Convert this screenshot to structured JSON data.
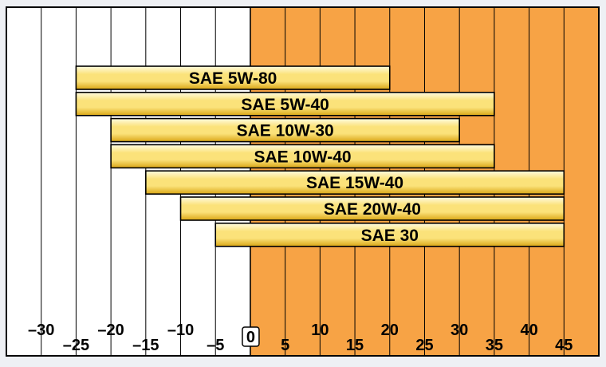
{
  "chart_data": {
    "type": "bar",
    "orientation": "horizontal-range",
    "xlim": [
      -35,
      50
    ],
    "background_regions": [
      {
        "from": -35,
        "to": 0,
        "color": "#ffffff"
      },
      {
        "from": 0,
        "to": 50,
        "color": "#f7a345"
      }
    ],
    "grid": true,
    "grid_values": [
      -30,
      -25,
      -20,
      -15,
      -10,
      -5,
      5,
      10,
      15,
      20,
      25,
      30,
      35,
      40,
      45
    ],
    "zero_line": 0,
    "x_ticks_upper": [
      {
        "value": -30,
        "label": "–30"
      },
      {
        "value": -20,
        "label": "–20"
      },
      {
        "value": -10,
        "label": "–10"
      },
      {
        "value": 10,
        "label": "10"
      },
      {
        "value": 20,
        "label": "20"
      },
      {
        "value": 30,
        "label": "30"
      },
      {
        "value": 40,
        "label": "40"
      }
    ],
    "x_ticks_lower": [
      {
        "value": -25,
        "label": "–25"
      },
      {
        "value": -15,
        "label": "–15"
      },
      {
        "value": -5,
        "label": "–5"
      },
      {
        "value": 5,
        "label": "5"
      },
      {
        "value": 15,
        "label": "15"
      },
      {
        "value": 25,
        "label": "25"
      },
      {
        "value": 35,
        "label": "35"
      },
      {
        "value": 45,
        "label": "45"
      }
    ],
    "zero_label": "0",
    "bars": [
      {
        "name": "SAE 5W-80",
        "from": -25,
        "to": 20
      },
      {
        "name": "SAE 5W-40",
        "from": -25,
        "to": 35
      },
      {
        "name": "SAE 10W-30",
        "from": -20,
        "to": 30
      },
      {
        "name": "SAE 10W-40",
        "from": -20,
        "to": 35
      },
      {
        "name": "SAE 15W-40",
        "from": -15,
        "to": 45
      },
      {
        "name": "SAE 20W-40",
        "from": -10,
        "to": 45
      },
      {
        "name": "SAE 30",
        "from": -5,
        "to": 45
      }
    ],
    "colors": {
      "bar_light": "#fffbe0",
      "bar_mid": "#fbe27a",
      "bar_dark": "#d9a615",
      "grid": "#000000",
      "outline": "#000000"
    }
  }
}
